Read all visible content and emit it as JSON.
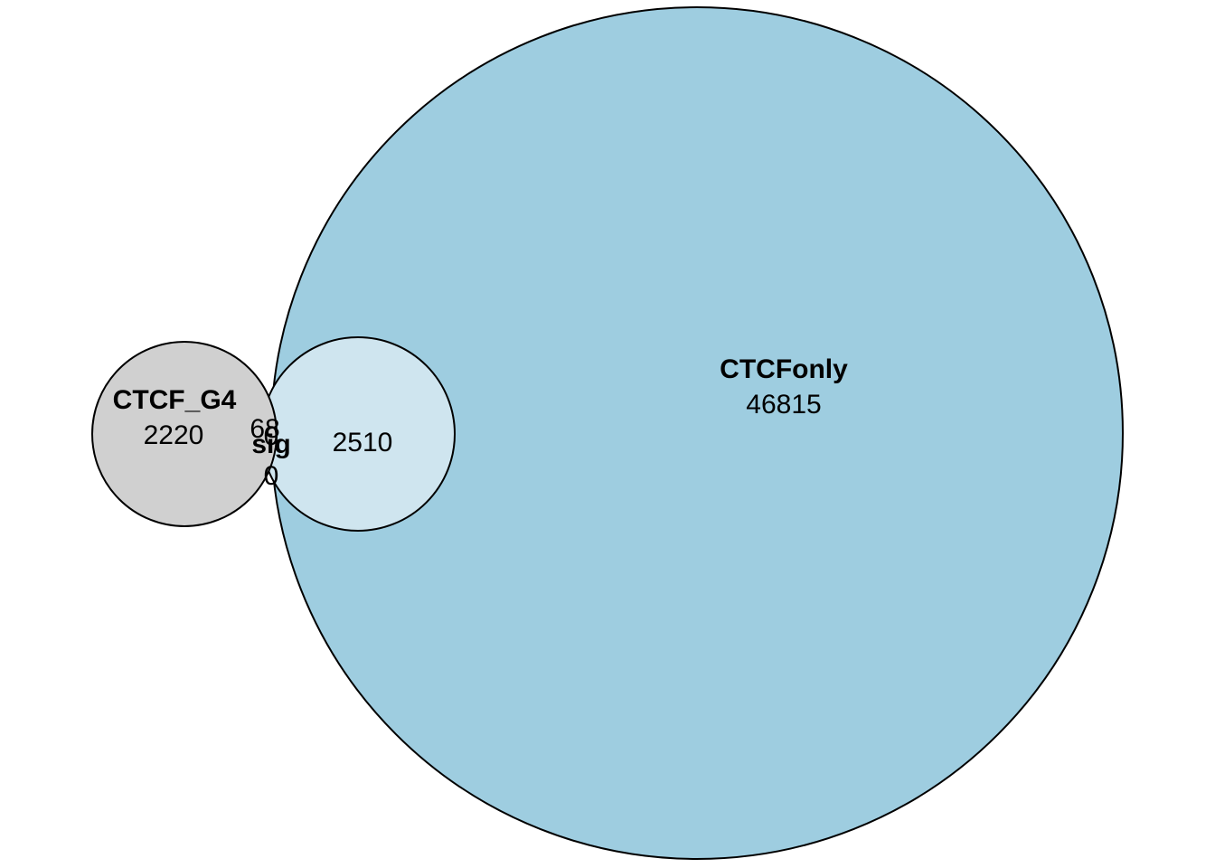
{
  "colors": {
    "ctcf_only_fill": "#9ecde0",
    "sig_fill": "#cfe5ef",
    "ctcf_g4_fill": "#d0d0d0",
    "outline": "#000000",
    "background": "#ffffff"
  },
  "diagram": {
    "type": "euler",
    "sets": [
      {
        "name": "CTCFonly",
        "exclusive_count": "46815"
      },
      {
        "name": "CTCF_G4",
        "exclusive_count": "2220"
      },
      {
        "name": "sig",
        "exclusive_count": ""
      }
    ],
    "regions": {
      "ctcf_only": "46815",
      "ctcf_g4": "2220",
      "ctcf_only_and_sig": "2510",
      "ctcf_g4_and_ctcf_only": "68",
      "ctcf_g4_and_sig": "0",
      "sig_and_ctcf_g4_and_ctcf_only": "0"
    }
  }
}
